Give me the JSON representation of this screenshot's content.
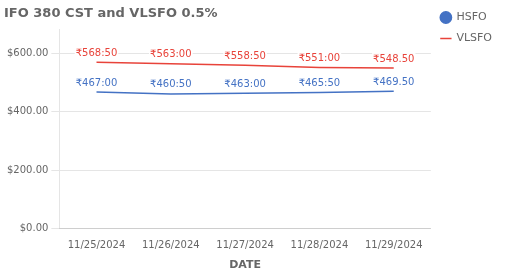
{
  "chart_data": {
    "type": "line",
    "title": "IFO 380 CST and VLSFO 0.5%",
    "xlabel": "DATE",
    "categories": [
      "11/25/2024",
      "11/26/2024",
      "11/27/2024",
      "11/28/2024",
      "11/29/2024"
    ],
    "series": [
      {
        "name": "HSFO",
        "color": "#4472c4",
        "values": [
          467.0,
          460.5,
          463.0,
          465.5,
          469.5
        ],
        "value_labels": [
          "₹467:00",
          "₹460:50",
          "₹463:00",
          "₹465:50",
          "₹469.50"
        ]
      },
      {
        "name": "VLSFO",
        "color": "#e8433a",
        "values": [
          568.5,
          563.0,
          558.5,
          551.0,
          548.5
        ],
        "value_labels": [
          "₹568:50",
          "₹563:00",
          "₹558:50",
          "₹551:00",
          "₹548.50"
        ]
      }
    ],
    "ylim": [
      0,
      680
    ],
    "yticks": [
      {
        "value": 0,
        "label": "$0.00"
      },
      {
        "value": 200,
        "label": "$200.00"
      },
      {
        "value": 400,
        "label": "$400.00"
      },
      {
        "value": 600,
        "label": "$600.00"
      }
    ],
    "grid": true,
    "legend": "right",
    "data_labels": true
  }
}
